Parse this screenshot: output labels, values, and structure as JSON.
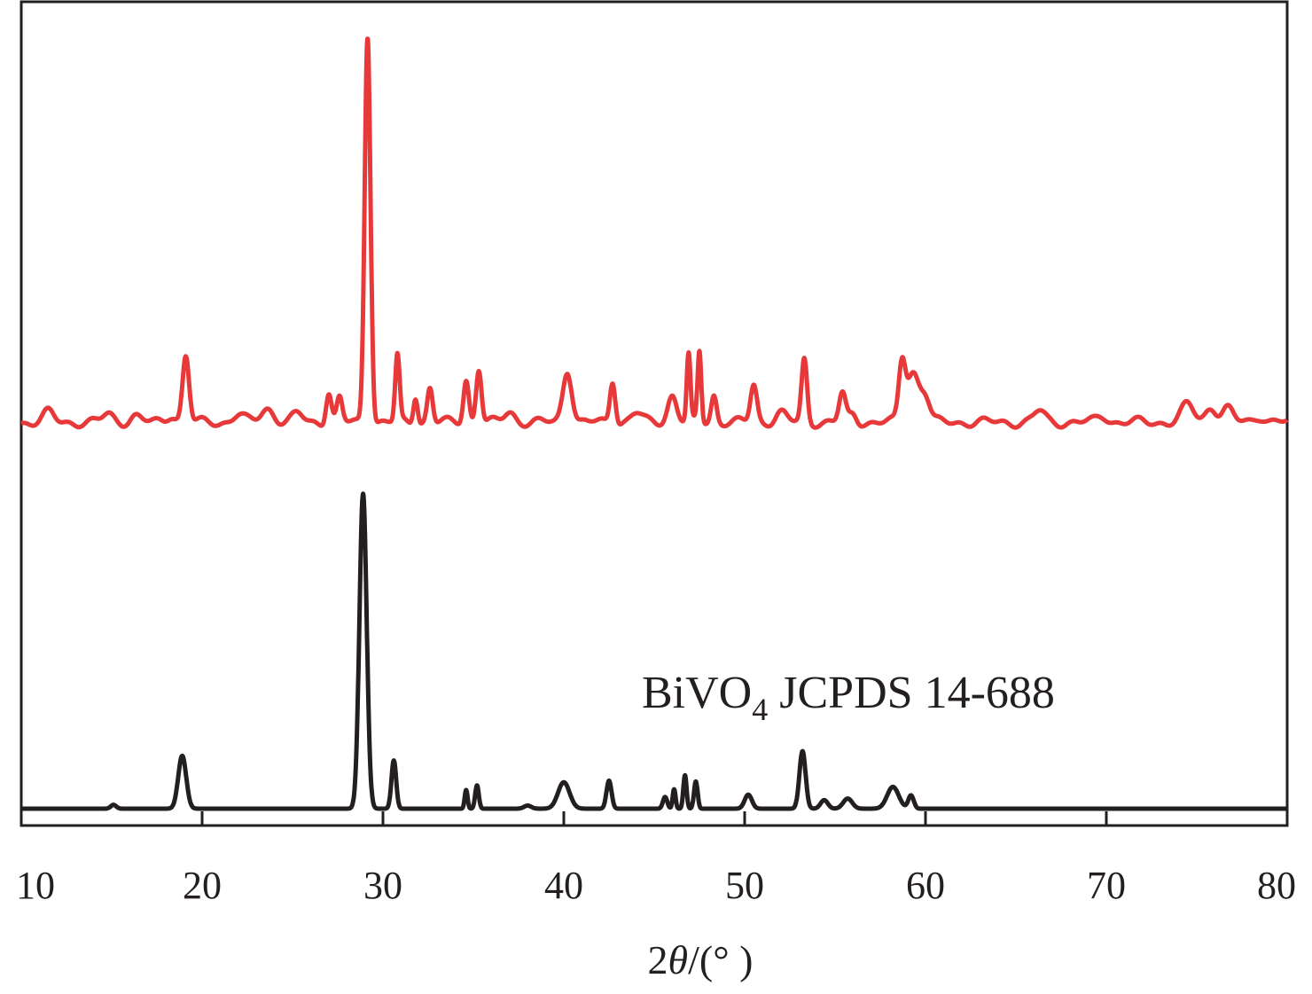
{
  "chart_data": {
    "type": "line",
    "title": "",
    "xlabel": "2θ/(°)",
    "xlabel_parts": {
      "prefix": "2",
      "theta": "θ",
      "suffix": "/(° )"
    },
    "ylabel": "",
    "xlim": [
      10,
      80
    ],
    "ylim": [
      0,
      1.0
    ],
    "x_ticks": [
      10,
      20,
      30,
      40,
      50,
      60,
      70,
      80
    ],
    "x_tick_labels": [
      "10",
      "20",
      "30",
      "40",
      "50",
      "60",
      "70",
      "80"
    ],
    "y_ticks_shown": false,
    "grid": false,
    "annotation": {
      "formula": "BiVO",
      "subscript": "4",
      "rest": " JCPDS 14-688"
    },
    "series": [
      {
        "color": "#e8393a",
        "baseline": 0.497,
        "peaks": [
          [
            11.5,
            0.012,
            0.3
          ],
          [
            14.8,
            0.01,
            0.3
          ],
          [
            16.3,
            0.008,
            0.3
          ],
          [
            18.3,
            0.01,
            0.25
          ],
          [
            19.1,
            0.085,
            0.18
          ],
          [
            22.0,
            0.01,
            0.3
          ],
          [
            23.6,
            0.018,
            0.35
          ],
          [
            25.3,
            0.01,
            0.3
          ],
          [
            27.0,
            0.04,
            0.15
          ],
          [
            27.6,
            0.03,
            0.15
          ],
          [
            29.15,
            0.5,
            0.16
          ],
          [
            30.8,
            0.085,
            0.12
          ],
          [
            31.8,
            0.035,
            0.12
          ],
          [
            32.6,
            0.045,
            0.15
          ],
          [
            34.6,
            0.055,
            0.15
          ],
          [
            35.3,
            0.07,
            0.15
          ],
          [
            37.0,
            0.013,
            0.3
          ],
          [
            40.2,
            0.068,
            0.25
          ],
          [
            42.7,
            0.055,
            0.15
          ],
          [
            44.0,
            0.012,
            0.3
          ],
          [
            46.0,
            0.035,
            0.25
          ],
          [
            46.9,
            0.085,
            0.1
          ],
          [
            47.5,
            0.09,
            0.1
          ],
          [
            48.3,
            0.035,
            0.15
          ],
          [
            50.5,
            0.048,
            0.18
          ],
          [
            52.0,
            0.012,
            0.3
          ],
          [
            53.3,
            0.08,
            0.15
          ],
          [
            55.4,
            0.036,
            0.18
          ],
          [
            56.0,
            0.01,
            0.2
          ],
          [
            58.7,
            0.07,
            0.18
          ],
          [
            59.3,
            0.065,
            0.35
          ],
          [
            60.0,
            0.03,
            0.25
          ],
          [
            66.3,
            0.014,
            0.3
          ],
          [
            69.8,
            0.008,
            0.3
          ],
          [
            74.5,
            0.022,
            0.35
          ],
          [
            75.8,
            0.02,
            0.3
          ],
          [
            76.7,
            0.017,
            0.3
          ],
          [
            78.5,
            0.008,
            0.3
          ]
        ]
      },
      {
        "color": "#231f20",
        "baseline": 0.0,
        "peaks": [
          [
            15.1,
            0.005,
            0.15
          ],
          [
            18.9,
            0.068,
            0.22
          ],
          [
            28.9,
            0.405,
            0.2
          ],
          [
            30.6,
            0.062,
            0.13
          ],
          [
            34.6,
            0.024,
            0.08
          ],
          [
            35.2,
            0.03,
            0.1
          ],
          [
            38.0,
            0.004,
            0.2
          ],
          [
            40.0,
            0.034,
            0.32
          ],
          [
            42.5,
            0.036,
            0.14
          ],
          [
            45.6,
            0.015,
            0.12
          ],
          [
            46.1,
            0.025,
            0.08
          ],
          [
            46.7,
            0.043,
            0.09
          ],
          [
            47.3,
            0.035,
            0.1
          ],
          [
            50.2,
            0.018,
            0.2
          ],
          [
            53.2,
            0.074,
            0.17
          ],
          [
            54.4,
            0.011,
            0.2
          ],
          [
            55.7,
            0.013,
            0.25
          ],
          [
            58.2,
            0.028,
            0.32
          ],
          [
            59.2,
            0.017,
            0.15
          ]
        ]
      }
    ]
  }
}
